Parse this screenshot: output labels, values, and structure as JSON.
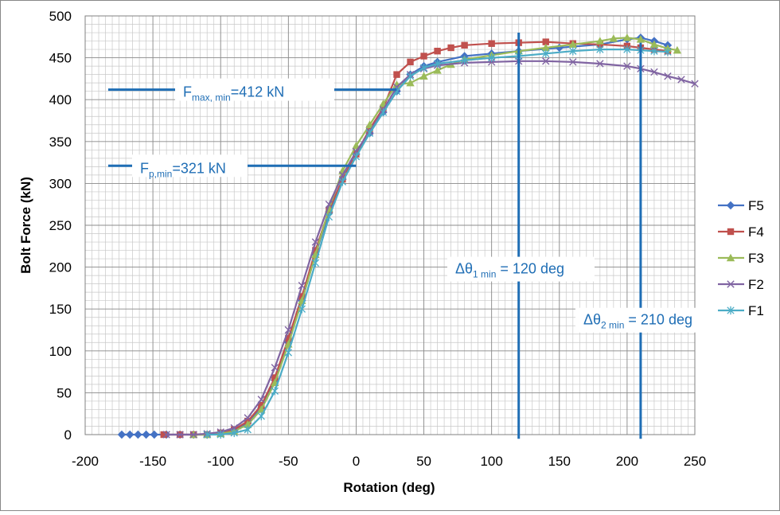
{
  "chart_data": {
    "type": "line",
    "xlabel": "Rotation (deg)",
    "ylabel": "Bolt Force (kN)",
    "xlim": [
      -200,
      250
    ],
    "ylim": [
      0,
      500
    ],
    "grid": true,
    "legend_position": "right",
    "x_ticks": [
      -200,
      -150,
      -100,
      -50,
      0,
      50,
      100,
      150,
      200,
      250
    ],
    "y_ticks": [
      0,
      50,
      100,
      150,
      200,
      250,
      300,
      350,
      400,
      450,
      500
    ],
    "series": [
      {
        "name": "F5",
        "color": "#4472C4",
        "marker": "diamond",
        "points": [
          [
            -173,
            0
          ],
          [
            -167,
            0
          ],
          [
            -161,
            0
          ],
          [
            -155,
            0
          ],
          [
            -149,
            0
          ],
          [
            -140,
            0
          ],
          [
            -130,
            0
          ],
          [
            -120,
            0
          ],
          [
            -110,
            0
          ],
          [
            -100,
            2
          ],
          [
            -90,
            5
          ],
          [
            -80,
            14
          ],
          [
            -70,
            32
          ],
          [
            -60,
            65
          ],
          [
            -50,
            110
          ],
          [
            -40,
            160
          ],
          [
            -30,
            215
          ],
          [
            -20,
            265
          ],
          [
            -10,
            305
          ],
          [
            0,
            335
          ],
          [
            10,
            360
          ],
          [
            20,
            385
          ],
          [
            30,
            410
          ],
          [
            40,
            430
          ],
          [
            50,
            440
          ],
          [
            60,
            445
          ],
          [
            80,
            452
          ],
          [
            100,
            455
          ],
          [
            120,
            458
          ],
          [
            150,
            462
          ],
          [
            180,
            466
          ],
          [
            200,
            472
          ],
          [
            210,
            474
          ],
          [
            220,
            470
          ],
          [
            230,
            465
          ]
        ]
      },
      {
        "name": "F4",
        "color": "#C0504D",
        "marker": "square",
        "points": [
          [
            -142,
            0
          ],
          [
            -130,
            0
          ],
          [
            -120,
            0
          ],
          [
            -110,
            0
          ],
          [
            -100,
            2
          ],
          [
            -90,
            6
          ],
          [
            -80,
            16
          ],
          [
            -70,
            35
          ],
          [
            -60,
            68
          ],
          [
            -50,
            115
          ],
          [
            -40,
            165
          ],
          [
            -30,
            220
          ],
          [
            -20,
            268
          ],
          [
            -10,
            305
          ],
          [
            0,
            335
          ],
          [
            10,
            365
          ],
          [
            20,
            390
          ],
          [
            30,
            430
          ],
          [
            40,
            445
          ],
          [
            50,
            452
          ],
          [
            60,
            458
          ],
          [
            70,
            462
          ],
          [
            80,
            465
          ],
          [
            100,
            467
          ],
          [
            120,
            468
          ],
          [
            140,
            469
          ],
          [
            160,
            467
          ],
          [
            180,
            466
          ],
          [
            200,
            464
          ],
          [
            210,
            462
          ],
          [
            220,
            460
          ],
          [
            230,
            458
          ]
        ]
      },
      {
        "name": "F3",
        "color": "#9BBB59",
        "marker": "triangle",
        "points": [
          [
            -120,
            0
          ],
          [
            -110,
            0
          ],
          [
            -100,
            1
          ],
          [
            -90,
            4
          ],
          [
            -80,
            12
          ],
          [
            -70,
            30
          ],
          [
            -60,
            62
          ],
          [
            -50,
            108
          ],
          [
            -40,
            160
          ],
          [
            -30,
            215
          ],
          [
            -20,
            270
          ],
          [
            -10,
            315
          ],
          [
            0,
            345
          ],
          [
            10,
            370
          ],
          [
            20,
            395
          ],
          [
            30,
            418
          ],
          [
            40,
            420
          ],
          [
            50,
            428
          ],
          [
            60,
            435
          ],
          [
            70,
            442
          ],
          [
            80,
            448
          ],
          [
            100,
            453
          ],
          [
            120,
            458
          ],
          [
            140,
            462
          ],
          [
            160,
            466
          ],
          [
            180,
            470
          ],
          [
            190,
            473
          ],
          [
            200,
            474
          ],
          [
            210,
            472
          ],
          [
            220,
            466
          ],
          [
            230,
            461
          ],
          [
            237,
            459
          ]
        ]
      },
      {
        "name": "F2",
        "color": "#8064A2",
        "marker": "x",
        "points": [
          [
            -140,
            0
          ],
          [
            -130,
            0
          ],
          [
            -120,
            0
          ],
          [
            -110,
            1
          ],
          [
            -100,
            3
          ],
          [
            -90,
            8
          ],
          [
            -80,
            20
          ],
          [
            -70,
            42
          ],
          [
            -60,
            80
          ],
          [
            -50,
            125
          ],
          [
            -40,
            178
          ],
          [
            -30,
            230
          ],
          [
            -20,
            275
          ],
          [
            -10,
            310
          ],
          [
            0,
            338
          ],
          [
            10,
            362
          ],
          [
            20,
            388
          ],
          [
            30,
            415
          ],
          [
            40,
            430
          ],
          [
            50,
            437
          ],
          [
            60,
            441
          ],
          [
            80,
            444
          ],
          [
            100,
            445
          ],
          [
            120,
            446
          ],
          [
            140,
            446
          ],
          [
            160,
            445
          ],
          [
            180,
            443
          ],
          [
            200,
            440
          ],
          [
            210,
            437
          ],
          [
            220,
            433
          ],
          [
            230,
            428
          ],
          [
            240,
            424
          ],
          [
            250,
            419
          ]
        ]
      },
      {
        "name": "F1",
        "color": "#4BACC6",
        "marker": "star",
        "points": [
          [
            -110,
            0
          ],
          [
            -100,
            0
          ],
          [
            -90,
            2
          ],
          [
            -80,
            6
          ],
          [
            -70,
            22
          ],
          [
            -60,
            52
          ],
          [
            -50,
            98
          ],
          [
            -40,
            150
          ],
          [
            -30,
            205
          ],
          [
            -20,
            260
          ],
          [
            -10,
            302
          ],
          [
            0,
            332
          ],
          [
            10,
            360
          ],
          [
            20,
            385
          ],
          [
            30,
            410
          ],
          [
            40,
            428
          ],
          [
            50,
            438
          ],
          [
            60,
            443
          ],
          [
            80,
            447
          ],
          [
            100,
            450
          ],
          [
            120,
            452
          ],
          [
            140,
            455
          ],
          [
            160,
            458
          ],
          [
            180,
            460
          ],
          [
            200,
            460
          ],
          [
            210,
            459
          ],
          [
            220,
            458
          ],
          [
            230,
            457
          ]
        ]
      }
    ],
    "annotations": [
      {
        "name": "fmax-line",
        "y": 412,
        "x_from": -183,
        "x_to": 30,
        "label_main": "F",
        "label_sub": "max, min",
        "label_rest": "=412 kN"
      },
      {
        "name": "fp-line",
        "y": 321,
        "x_from": -183,
        "x_to": 0,
        "label_main": "F",
        "label_sub": "p,min",
        "label_rest": "=321 kN"
      },
      {
        "name": "dtheta1-line",
        "x": 120,
        "y_from": -5,
        "y_to": 480,
        "label_main": "Δθ",
        "label_sub": "1 min",
        "label_rest": " = 120 deg"
      },
      {
        "name": "dtheta2-line",
        "x": 210,
        "y_from": -5,
        "y_to": 468,
        "label_main": "Δθ",
        "label_sub": "2 min",
        "label_rest": " = 210 deg"
      }
    ]
  }
}
